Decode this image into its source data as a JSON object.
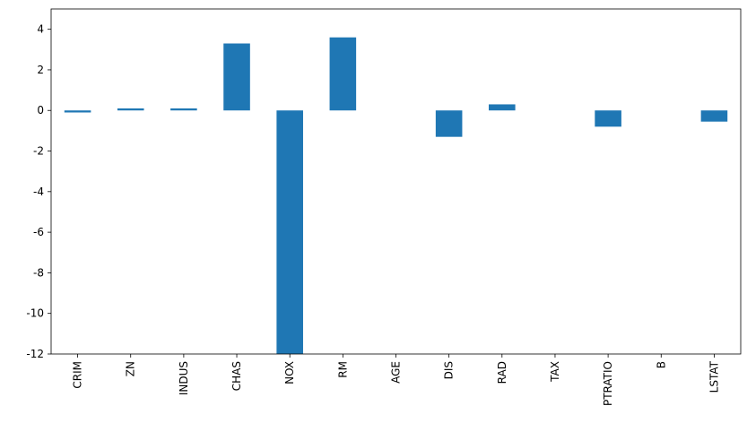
{
  "chart_data": {
    "type": "bar",
    "categories": [
      "CRIM",
      "ZN",
      "INDUS",
      "CHAS",
      "NOX",
      "RM",
      "AGE",
      "DIS",
      "RAD",
      "TAX",
      "PTRATIO",
      "B",
      "LSTAT"
    ],
    "values": [
      -0.1,
      0.1,
      0.1,
      3.3,
      -12,
      3.6,
      0,
      -1.3,
      0.3,
      0,
      -0.8,
      0,
      -0.55
    ],
    "color": "#1f77b4",
    "ylim": [
      -12,
      5
    ],
    "yticks": [
      -12,
      -10,
      -8,
      -6,
      -4,
      -2,
      0,
      2,
      4
    ],
    "grid": false
  }
}
